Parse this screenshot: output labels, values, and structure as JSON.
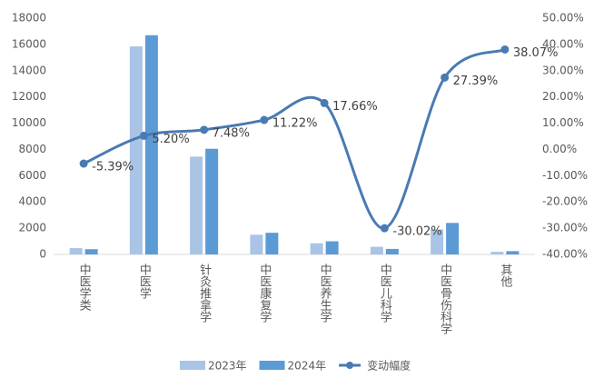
{
  "chart_data": {
    "type": "bar-line",
    "categories": [
      "中医学类",
      "中医学",
      "针灸推拿学",
      "中医康复学",
      "中医养生学",
      "中医儿科学",
      "中医骨伤科学",
      "其他"
    ],
    "series": [
      {
        "name": "2023年",
        "type": "bar",
        "color": "#a9c4e5",
        "values": [
          480,
          15850,
          7450,
          1500,
          850,
          580,
          1900,
          200
        ]
      },
      {
        "name": "2024年",
        "type": "bar",
        "color": "#5b9bd5",
        "values": [
          400,
          16700,
          8050,
          1650,
          1000,
          420,
          2400,
          250
        ]
      },
      {
        "name": "变动幅度",
        "type": "line",
        "axis": "y2",
        "color": "#4a7ab3",
        "values": [
          -5.39,
          5.2,
          7.48,
          11.22,
          17.66,
          -30.02,
          27.39,
          38.07
        ],
        "value_labels": [
          "-5.39%",
          "5.20%",
          "7.48%",
          "11.22%",
          "17.66%",
          "-30.02%",
          "27.39%",
          "38.07%"
        ]
      }
    ],
    "ylim": [
      0,
      18000
    ],
    "yticks": [
      0,
      2000,
      4000,
      6000,
      8000,
      10000,
      12000,
      14000,
      16000,
      18000
    ],
    "y2lim": [
      -40,
      50
    ],
    "y2ticks": [
      {
        "value": -40,
        "label": "-40.00%"
      },
      {
        "value": -30,
        "label": "-30.00%"
      },
      {
        "value": -20,
        "label": "-20.00%"
      },
      {
        "value": -10,
        "label": "-10.00%"
      },
      {
        "value": 0,
        "label": "0.00%"
      },
      {
        "value": 10,
        "label": "10.00%"
      },
      {
        "value": 20,
        "label": "20.00%"
      },
      {
        "value": 30,
        "label": "30.00%"
      },
      {
        "value": 40,
        "label": "40.00%"
      },
      {
        "value": 50,
        "label": "50.00%"
      }
    ],
    "grid": false,
    "legend": "bottom"
  }
}
